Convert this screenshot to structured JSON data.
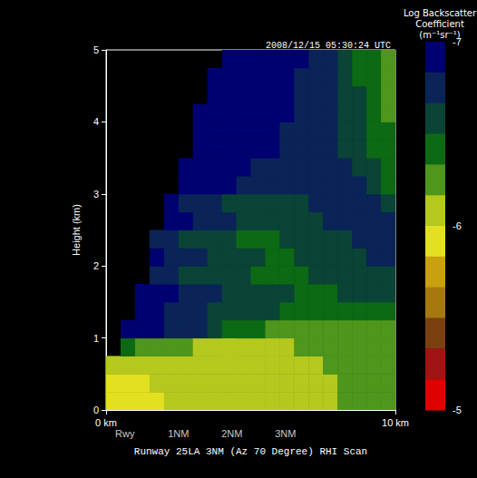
{
  "chart_data": {
    "type": "heatmap",
    "title": "2008/12/15 05:30:24 UTC",
    "xlabel": "Runway 25LA 3NM (Az 70 Degree) RHI Scan",
    "ylabel": "Height (km)",
    "xlim": [
      0,
      10
    ],
    "xticks": [
      {
        "value": 0,
        "label": "0 km"
      },
      {
        "value": 10,
        "label": "10 km"
      }
    ],
    "ylim": [
      0,
      5
    ],
    "yticks": [
      0,
      1,
      2,
      3,
      4,
      5
    ],
    "grid": false,
    "annotations": [
      {
        "x": 0.65,
        "text": "Rwy"
      },
      {
        "x": 2.5,
        "text": "1NM"
      },
      {
        "x": 4.35,
        "text": "2NM"
      },
      {
        "x": 6.2,
        "text": "3NM"
      }
    ],
    "colorbar": {
      "title": "Log Backscatter Coefficient (m⁻¹sr⁻¹)",
      "range": [
        -7,
        -5
      ],
      "ticks": [
        -7,
        -6,
        -5
      ],
      "colors": [
        "#000070",
        "#0a2458",
        "#0a4436",
        "#0c6a14",
        "#4e961c",
        "#b4c81e",
        "#e2e020",
        "#c8a010",
        "#a67810",
        "#7a4010",
        "#a01414",
        "#e00000"
      ]
    },
    "cells": {
      "x_edges": [
        0,
        0.5,
        1,
        1.5,
        2,
        2.5,
        3,
        3.5,
        4,
        4.5,
        5,
        5.5,
        6,
        6.5,
        7,
        7.5,
        8,
        8.5,
        9,
        9.5,
        10
      ],
      "y_edges": [
        0,
        0.25,
        0.5,
        0.75,
        1,
        1.25,
        1.5,
        1.75,
        2,
        2.25,
        2.5,
        2.75,
        3,
        3.25,
        3.5,
        3.75,
        4,
        4.25,
        4.5,
        4.75,
        5
      ],
      "values": [
        [
          -5.95,
          -5.95,
          -6.0,
          -6.0,
          -6.05,
          -6.05,
          -6.05,
          -6.1,
          -6.1,
          -6.1,
          -6.1,
          -6.1,
          -6.15,
          -6.15,
          -6.15,
          -6.15,
          -6.2,
          -6.2,
          -6.2,
          -6.2
        ],
        [
          -5.95,
          -6.0,
          -6.0,
          -6.05,
          -6.05,
          -6.1,
          -6.1,
          -6.1,
          -6.1,
          -6.1,
          -6.1,
          -6.15,
          -6.15,
          -6.15,
          -6.15,
          -6.15,
          -6.2,
          -6.2,
          -6.2,
          -6.2
        ],
        [
          -6.1,
          -6.05,
          -6.05,
          -6.1,
          -6.1,
          -6.1,
          -6.1,
          -6.1,
          -6.1,
          -6.15,
          -6.15,
          -6.15,
          -6.15,
          -6.15,
          -6.15,
          -6.2,
          -6.2,
          -6.2,
          -6.2,
          -6.25
        ],
        [
          null,
          -6.35,
          -6.3,
          -6.25,
          -6.2,
          -6.2,
          -6.15,
          -6.15,
          -6.15,
          -6.15,
          -6.15,
          -6.15,
          -6.15,
          -6.2,
          -6.2,
          -6.2,
          -6.2,
          -6.2,
          -6.25,
          -6.25
        ],
        [
          null,
          -6.9,
          -6.9,
          -6.85,
          -6.8,
          -6.75,
          -6.7,
          -6.6,
          -6.5,
          -6.4,
          -6.35,
          -6.3,
          -6.25,
          -6.25,
          -6.25,
          -6.25,
          -6.25,
          -6.3,
          -6.3,
          -6.3
        ],
        [
          null,
          null,
          -6.85,
          -6.85,
          -6.8,
          -6.75,
          -6.7,
          -6.65,
          -6.6,
          -6.6,
          -6.55,
          -6.55,
          -6.5,
          -6.5,
          -6.5,
          -6.45,
          -6.45,
          -6.45,
          -6.5,
          -6.5
        ],
        [
          null,
          null,
          -6.9,
          -6.9,
          -6.85,
          -6.8,
          -6.75,
          -6.7,
          -6.65,
          -6.6,
          -6.6,
          -6.55,
          -6.55,
          -6.5,
          -6.5,
          -6.5,
          -6.55,
          -6.55,
          -6.6,
          -6.6
        ],
        [
          null,
          null,
          null,
          -6.7,
          -6.7,
          -6.65,
          -6.6,
          -6.6,
          -6.55,
          -6.55,
          -6.5,
          -6.5,
          -6.5,
          -6.5,
          -6.55,
          -6.55,
          -6.6,
          -6.6,
          -6.65,
          -6.65
        ],
        [
          null,
          null,
          null,
          -6.85,
          -6.8,
          -6.75,
          -6.7,
          -6.65,
          -6.6,
          -6.55,
          -6.55,
          -6.5,
          -6.5,
          -6.55,
          -6.55,
          -6.6,
          -6.6,
          -6.65,
          -6.7,
          -6.7
        ],
        [
          null,
          null,
          null,
          -6.7,
          -6.7,
          -6.65,
          -6.6,
          -6.55,
          -6.55,
          -6.5,
          -6.5,
          -6.5,
          -6.55,
          -6.55,
          -6.6,
          -6.6,
          -6.65,
          -6.7,
          -6.7,
          -6.7
        ],
        [
          null,
          null,
          null,
          null,
          -6.9,
          -6.85,
          -6.8,
          -6.75,
          -6.7,
          -6.65,
          -6.6,
          -6.6,
          -6.6,
          -6.65,
          -6.65,
          -6.7,
          -6.7,
          -6.75,
          -6.75,
          -6.7
        ],
        [
          null,
          null,
          null,
          null,
          -6.85,
          -6.8,
          -6.75,
          -6.7,
          -6.65,
          -6.6,
          -6.6,
          -6.6,
          -6.6,
          -6.65,
          -6.7,
          -6.7,
          -6.75,
          -6.75,
          -6.7,
          -6.65
        ],
        [
          null,
          null,
          null,
          null,
          null,
          -6.95,
          -6.9,
          -6.9,
          -6.85,
          -6.8,
          -6.75,
          -6.75,
          -6.7,
          -6.7,
          -6.7,
          -6.75,
          -6.75,
          -6.7,
          -6.6,
          -6.5
        ],
        [
          null,
          null,
          null,
          null,
          null,
          -6.95,
          -6.95,
          -6.9,
          -6.9,
          -6.85,
          -6.8,
          -6.8,
          -6.75,
          -6.75,
          -6.7,
          -6.7,
          -6.7,
          -6.65,
          -6.55,
          -6.45
        ],
        [
          null,
          null,
          null,
          null,
          null,
          null,
          -6.95,
          -6.95,
          -6.9,
          -6.9,
          -6.85,
          -6.85,
          -6.8,
          -6.75,
          -6.7,
          -6.7,
          -6.65,
          -6.6,
          -6.5,
          -6.4
        ],
        [
          null,
          null,
          null,
          null,
          null,
          null,
          -7.0,
          -6.95,
          -6.95,
          -6.9,
          -6.9,
          -6.85,
          -6.8,
          -6.8,
          -6.75,
          -6.7,
          -6.65,
          -6.6,
          -6.45,
          -6.35
        ],
        [
          null,
          null,
          null,
          null,
          null,
          null,
          -7.0,
          -7.0,
          -6.95,
          -6.95,
          -6.9,
          -6.85,
          -6.85,
          -6.8,
          -6.75,
          -6.7,
          -6.65,
          -6.55,
          -6.45,
          -6.3
        ],
        [
          null,
          null,
          null,
          null,
          null,
          null,
          null,
          -7.0,
          -6.95,
          -6.95,
          -6.9,
          -6.9,
          -6.85,
          -6.8,
          -6.75,
          -6.7,
          -6.65,
          -6.55,
          -6.4,
          -6.3
        ],
        [
          null,
          null,
          null,
          null,
          null,
          null,
          null,
          -7.0,
          -7.0,
          -6.95,
          -6.95,
          -6.9,
          -6.85,
          -6.8,
          -6.75,
          -6.7,
          -6.6,
          -6.5,
          -6.35,
          -6.25
        ],
        [
          null,
          null,
          null,
          null,
          null,
          null,
          null,
          null,
          -7.0,
          -6.95,
          -6.95,
          -6.9,
          -6.85,
          -6.85,
          -6.8,
          -6.75,
          -6.65,
          -6.5,
          -6.35,
          -6.25
        ]
      ]
    }
  }
}
